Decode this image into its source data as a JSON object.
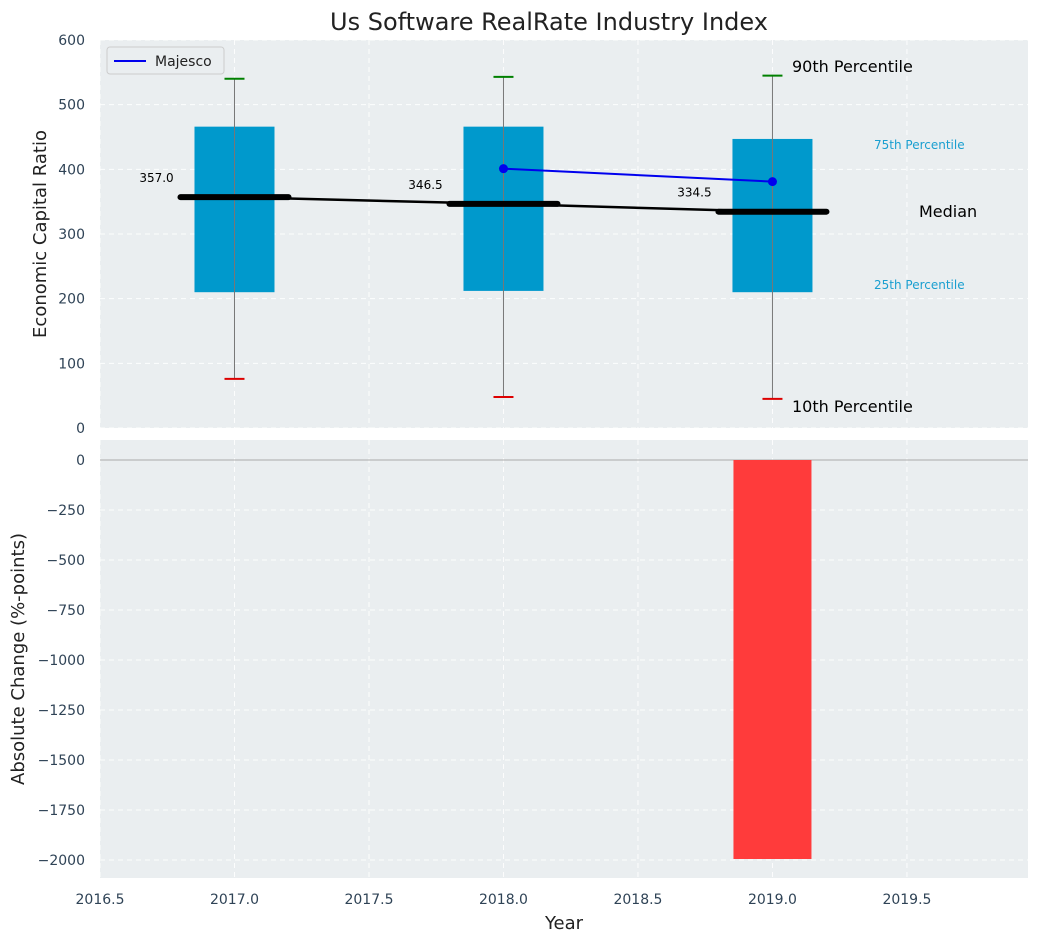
{
  "chart_data": [
    {
      "type": "box",
      "title": "Us Software RealRate Industry Index",
      "ylabel": "Economic Capital Ratio",
      "xlabel": "",
      "ylim": [
        0,
        600
      ],
      "yticks": [
        0,
        100,
        200,
        300,
        400,
        500,
        600
      ],
      "grid": true,
      "legend_placement": "top-left",
      "categories": [
        2017,
        2018,
        2019
      ],
      "boxes": [
        {
          "x": 2017,
          "p10": 76,
          "p25": 210,
          "median": 357.0,
          "p75": 466,
          "p90": 540
        },
        {
          "x": 2018,
          "p10": 48,
          "p25": 212,
          "median": 346.5,
          "p75": 466,
          "p90": 543
        },
        {
          "x": 2019,
          "p10": 45,
          "p25": 210,
          "median": 334.5,
          "p75": 447,
          "p90": 545
        }
      ],
      "median_labels": [
        "357.0",
        "346.5",
        "334.5"
      ],
      "series": [
        {
          "name": "Majesco",
          "x": [
            2018,
            2019
          ],
          "values": [
            401,
            381
          ],
          "color": "#0000ee"
        }
      ],
      "annotations": {
        "p90": "90th Percentile",
        "p75": "75th Percentile",
        "median": "Median",
        "p25": "25th Percentile",
        "p10": "10th Percentile"
      },
      "colors": {
        "box": "#0099cc",
        "median": "#000000",
        "p90_cap": "#008000",
        "p10_cap": "#dd0000"
      }
    },
    {
      "type": "bar",
      "ylabel": "Absolute Change (%-points)",
      "xlabel": "Year",
      "xlim": [
        2016.5,
        2019.95
      ],
      "xticks": [
        "2016.5",
        "2017.0",
        "2017.5",
        "2018.0",
        "2018.5",
        "2019.0",
        "2019.5"
      ],
      "ylim": [
        -2100,
        0
      ],
      "yticks": [
        "0",
        "−250",
        "−500",
        "−750",
        "−1000",
        "−1250",
        "−1500",
        "−1750",
        "−2000"
      ],
      "grid": true,
      "x": [
        2019
      ],
      "values": [
        -1995
      ],
      "colors": {
        "bar": "#ff3b3b"
      }
    }
  ],
  "legend": {
    "label": "Majesco"
  }
}
